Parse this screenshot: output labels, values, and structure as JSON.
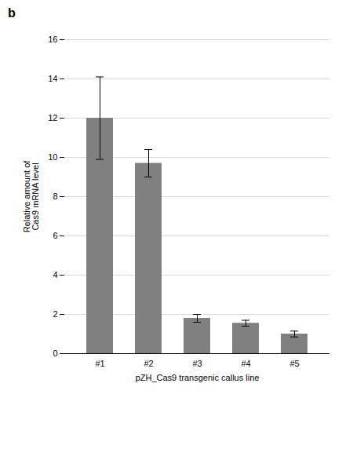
{
  "chart_data": {
    "type": "bar",
    "title": "b",
    "categories": [
      "#1",
      "#2",
      "#3",
      "#4",
      "#5"
    ],
    "values": [
      12.0,
      9.7,
      1.8,
      1.55,
      1.0
    ],
    "errors": [
      2.1,
      0.7,
      0.2,
      0.15,
      0.15
    ],
    "color": "#808080",
    "xlabel": "pZH_Cas9 transgenic callus line",
    "ylabel": "Relative amount of\nCas9 mRNA level",
    "ylim": [
      0,
      16
    ],
    "yticks": [
      0,
      2,
      4,
      6,
      8,
      10,
      12,
      14,
      16
    ],
    "grid": true
  }
}
